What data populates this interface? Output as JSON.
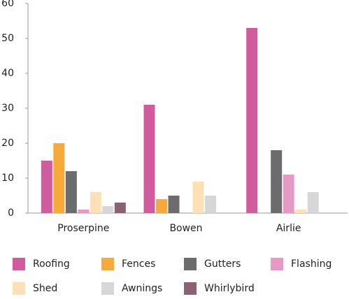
{
  "chart_data": {
    "type": "bar",
    "categories": [
      "Proserpine",
      "Bowen",
      "Airlie"
    ],
    "series": [
      {
        "name": "Roofing",
        "color": "#d15c9d",
        "values": [
          15,
          31,
          53
        ]
      },
      {
        "name": "Fences",
        "color": "#f8a93b",
        "values": [
          20,
          4,
          0
        ]
      },
      {
        "name": "Gutters",
        "color": "#6c6c6e",
        "values": [
          12,
          5,
          18
        ]
      },
      {
        "name": "Flashing",
        "color": "#e49ac4",
        "values": [
          1,
          0,
          11
        ]
      },
      {
        "name": "Shed",
        "color": "#fde0b6",
        "values": [
          6,
          9,
          1
        ]
      },
      {
        "name": "Awnings",
        "color": "#d7d7d9",
        "values": [
          2,
          5,
          6
        ]
      },
      {
        "name": "Whirlybird",
        "color": "#8b6174",
        "values": [
          3,
          0,
          0
        ]
      }
    ],
    "ylim": [
      0,
      60
    ],
    "yticks": [
      0,
      10,
      20,
      30,
      40,
      50,
      60
    ],
    "grid": false,
    "legend": "bottom"
  }
}
